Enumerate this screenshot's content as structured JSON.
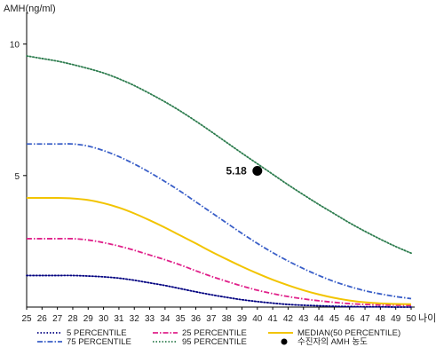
{
  "chart_data": {
    "type": "line",
    "ylabel": "AMH(ng/ml)",
    "xlabel": "나이",
    "x": [
      25,
      26,
      27,
      28,
      29,
      30,
      31,
      32,
      33,
      34,
      35,
      36,
      37,
      38,
      39,
      40,
      41,
      42,
      43,
      44,
      45,
      46,
      47,
      48,
      49,
      50
    ],
    "xlim": [
      25,
      50
    ],
    "ylim": [
      0,
      11
    ],
    "yticks": [
      5,
      10
    ],
    "grid": false,
    "legend_position": "bottom",
    "series": [
      {
        "name": "5 PERCENTILE",
        "color": "#000080",
        "style": "dotted",
        "values": [
          1.2,
          1.2,
          1.2,
          1.2,
          1.18,
          1.15,
          1.1,
          1.02,
          0.92,
          0.82,
          0.7,
          0.58,
          0.47,
          0.37,
          0.28,
          0.21,
          0.15,
          0.1,
          0.07,
          0.05,
          0.03,
          0.02,
          0.01,
          0.01,
          0.0,
          0.0
        ]
      },
      {
        "name": "25 PERCENTILE",
        "color": "#e0208a",
        "style": "dashdot",
        "values": [
          2.6,
          2.6,
          2.6,
          2.6,
          2.55,
          2.45,
          2.32,
          2.16,
          1.98,
          1.8,
          1.6,
          1.38,
          1.17,
          0.98,
          0.8,
          0.64,
          0.51,
          0.4,
          0.31,
          0.24,
          0.18,
          0.13,
          0.1,
          0.08,
          0.07,
          0.06
        ]
      },
      {
        "name": "MEDIAN(50 PERCENTILE)",
        "color": "#f2c400",
        "style": "solid",
        "values": [
          4.15,
          4.15,
          4.15,
          4.13,
          4.07,
          3.95,
          3.78,
          3.56,
          3.3,
          3.02,
          2.72,
          2.42,
          2.11,
          1.82,
          1.54,
          1.28,
          1.04,
          0.83,
          0.64,
          0.48,
          0.35,
          0.25,
          0.18,
          0.14,
          0.12,
          0.11
        ]
      },
      {
        "name": "75 PERCENTILE",
        "color": "#3a5fc8",
        "style": "dashdot",
        "values": [
          6.2,
          6.2,
          6.2,
          6.2,
          6.12,
          5.95,
          5.72,
          5.44,
          5.12,
          4.77,
          4.4,
          4.0,
          3.6,
          3.2,
          2.8,
          2.42,
          2.07,
          1.75,
          1.46,
          1.2,
          0.97,
          0.78,
          0.62,
          0.5,
          0.4,
          0.32
        ]
      },
      {
        "name": "95 PERCENTILE",
        "color": "#2e7d4f",
        "style": "dotted",
        "values": [
          9.55,
          9.45,
          9.35,
          9.22,
          9.07,
          8.9,
          8.68,
          8.42,
          8.12,
          7.8,
          7.45,
          7.07,
          6.67,
          6.26,
          5.85,
          5.45,
          5.05,
          4.65,
          4.27,
          3.9,
          3.55,
          3.2,
          2.88,
          2.58,
          2.3,
          2.05
        ]
      }
    ],
    "annotation": {
      "name": "수진자의 AMH 농도",
      "x": 40,
      "y": 5.18,
      "label": "5.18"
    },
    "legend_order": [
      "5 PERCENTILE",
      "25 PERCENTILE",
      "MEDIAN(50 PERCENTILE)",
      "75 PERCENTILE",
      "95 PERCENTILE",
      "수진자의 AMH 농도"
    ]
  }
}
